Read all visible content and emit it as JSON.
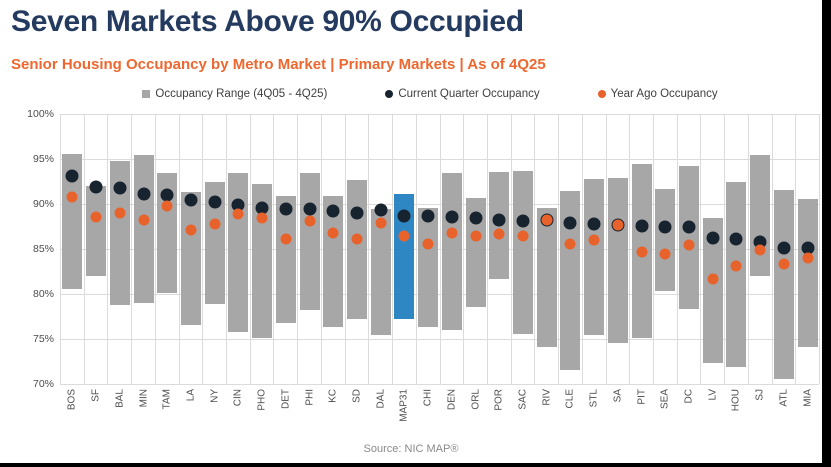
{
  "window": {
    "frame_color": "#000000",
    "background_color": "#FFFFFF"
  },
  "header": {
    "title": "Seven Markets Above 90% Occupied",
    "subtitle": "Senior Housing Occupancy by Metro Market | Primary Markets | As of 4Q25",
    "title_color": "#243A5E",
    "subtitle_color": "#ED672F"
  },
  "legend": {
    "items": [
      {
        "label": "Occupancy Range (4Q05 - 4Q25)",
        "marker": "square",
        "color": "#A7A7A7"
      },
      {
        "label": "Current Quarter Occupancy",
        "marker": "dot",
        "color": "#17232E"
      },
      {
        "label": "Year Ago Occupancy",
        "marker": "dot",
        "color": "#E8632B"
      }
    ]
  },
  "footer": {
    "source": "Source: NIC MAP®"
  },
  "chart_data": {
    "type": "bar",
    "subtype": "floating-range-bars-with-point-markers",
    "title": "Seven Markets Above 90% Occupied",
    "subtitle": "Senior Housing Occupancy by Metro Market | Primary Markets | As of 4Q25",
    "xlabel": "",
    "ylabel": "",
    "ylim": [
      70,
      100
    ],
    "yticks": [
      100,
      95,
      90,
      85,
      80,
      75,
      70
    ],
    "ytick_labels": [
      "100%",
      "95%",
      "90%",
      "85%",
      "80%",
      "75%",
      "70%"
    ],
    "grid": true,
    "legend_position": "top",
    "colors": {
      "range_bar": "#A7A7A7",
      "highlight_bar": "#2E86C3",
      "current_dot": "#17232E",
      "year_ago_dot": "#E8632B",
      "gridline": "#DBDBDB",
      "axis_text": "#4D4D4D"
    },
    "highlight_category": "MAP31",
    "categories": [
      "BOS",
      "SF",
      "BAL",
      "MIN",
      "TAM",
      "LA",
      "NY",
      "CIN",
      "PHO",
      "DET",
      "PHI",
      "KC",
      "SD",
      "DAL",
      "MAP31",
      "CHI",
      "DEN",
      "ORL",
      "POR",
      "SAC",
      "RIV",
      "CLE",
      "STL",
      "SA",
      "PIT",
      "SEA",
      "DC",
      "LV",
      "HOU",
      "SJ",
      "ATL",
      "MIA"
    ],
    "series": [
      {
        "name": "Occupancy Range (4Q05 - 4Q25)",
        "render": "range",
        "low": [
          80.5,
          82.0,
          78.8,
          79.0,
          80.1,
          76.6,
          78.9,
          75.8,
          75.1,
          76.8,
          78.2,
          76.3,
          77.2,
          75.5,
          77.2,
          76.3,
          76.0,
          78.6,
          81.7,
          75.6,
          74.1,
          71.6,
          75.4,
          74.6,
          75.1,
          80.3,
          78.3,
          72.3,
          71.9,
          82.0,
          70.5,
          74.1
        ],
        "high": [
          95.6,
          92.0,
          94.8,
          95.4,
          93.5,
          91.3,
          92.5,
          93.4,
          92.2,
          90.9,
          93.4,
          90.9,
          92.7,
          89.5,
          91.1,
          89.6,
          93.4,
          90.7,
          93.6,
          93.7,
          89.6,
          91.5,
          92.8,
          92.9,
          94.4,
          91.7,
          94.2,
          88.5,
          92.4,
          95.5,
          91.6,
          90.6
        ]
      },
      {
        "name": "Current Quarter Occupancy",
        "render": "point",
        "values": [
          93.1,
          91.9,
          91.8,
          91.1,
          91.0,
          90.4,
          90.2,
          89.9,
          89.6,
          89.4,
          89.4,
          89.2,
          89.0,
          89.3,
          88.7,
          88.7,
          88.6,
          88.4,
          88.2,
          88.1,
          88.2,
          87.9,
          87.8,
          87.7,
          87.6,
          87.5,
          87.4,
          86.2,
          86.1,
          85.8,
          85.1,
          85.1
        ]
      },
      {
        "name": "Year Ago Occupancy",
        "render": "point",
        "values": [
          90.8,
          88.6,
          89.0,
          88.2,
          89.8,
          87.1,
          87.8,
          88.9,
          88.4,
          86.1,
          88.1,
          86.8,
          86.1,
          87.9,
          86.5,
          85.6,
          86.8,
          86.5,
          86.7,
          86.4,
          88.2,
          85.6,
          86.0,
          87.7,
          84.7,
          84.5,
          85.5,
          81.7,
          83.1,
          84.9,
          83.3,
          84.0
        ]
      }
    ],
    "source": "Source: NIC MAP®"
  }
}
